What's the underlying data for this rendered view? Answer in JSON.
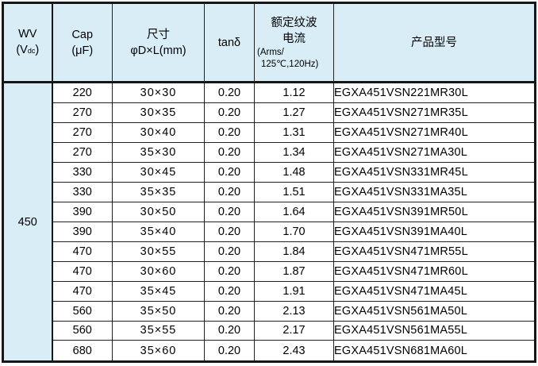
{
  "colors": {
    "header_bg": "#d9edf7",
    "border": "#161616",
    "row_bg": "#ffffff",
    "text": "#000000"
  },
  "table": {
    "merged_wv_value": "450",
    "header": {
      "wv": {
        "line1": "WV",
        "open": "(V",
        "sub": "dc",
        "close": ")"
      },
      "cap": {
        "line1": "Cap",
        "line2": "(μF)"
      },
      "size": {
        "line1": "尺寸",
        "line2": "φD×L(mm)"
      },
      "tand": {
        "label": "tanδ"
      },
      "ripple": {
        "line1": "额定纹波",
        "line2": "电流",
        "line3": "(Arms/",
        "line4": "125℃,120Hz)"
      },
      "model": {
        "label": "产品型号"
      }
    },
    "rows": [
      {
        "cap": "220",
        "size": "30×30",
        "tand": "0.20",
        "ripple": "1.12",
        "model": "EGXA451VSN221MR30L"
      },
      {
        "cap": "270",
        "size": "30×35",
        "tand": "0.20",
        "ripple": "1.27",
        "model": "EGXA451VSN271MR35L"
      },
      {
        "cap": "270",
        "size": "30×40",
        "tand": "0.20",
        "ripple": "1.31",
        "model": "EGXA451VSN271MR40L"
      },
      {
        "cap": "270",
        "size": "35×30",
        "tand": "0.20",
        "ripple": "1.34",
        "model": "EGXA451VSN271MA30L"
      },
      {
        "cap": "330",
        "size": "30×45",
        "tand": "0.20",
        "ripple": "1.48",
        "model": "EGXA451VSN331MR45L"
      },
      {
        "cap": "330",
        "size": "35×35",
        "tand": "0.20",
        "ripple": "1.51",
        "model": "EGXA451VSN331MA35L"
      },
      {
        "cap": "390",
        "size": "30×50",
        "tand": "0.20",
        "ripple": "1.64",
        "model": "EGXA451VSN391MR50L"
      },
      {
        "cap": "390",
        "size": "35×40",
        "tand": "0.20",
        "ripple": "1.70",
        "model": "EGXA451VSN391MA40L"
      },
      {
        "cap": "470",
        "size": "30×55",
        "tand": "0.20",
        "ripple": "1.84",
        "model": "EGXA451VSN471MR55L"
      },
      {
        "cap": "470",
        "size": "30×60",
        "tand": "0.20",
        "ripple": "1.87",
        "model": "EGXA451VSN471MR60L"
      },
      {
        "cap": "470",
        "size": "35×45",
        "tand": "0.20",
        "ripple": "1.91",
        "model": "EGXA451VSN471MA45L"
      },
      {
        "cap": "560",
        "size": "35×50",
        "tand": "0.20",
        "ripple": "2.13",
        "model": "EGXA451VSN561MA50L"
      },
      {
        "cap": "560",
        "size": "35×55",
        "tand": "0.20",
        "ripple": "2.17",
        "model": "EGXA451VSN561MA55L"
      },
      {
        "cap": "680",
        "size": "35×60",
        "tand": "0.20",
        "ripple": "2.43",
        "model": "EGXA451VSN681MA60L"
      }
    ]
  }
}
